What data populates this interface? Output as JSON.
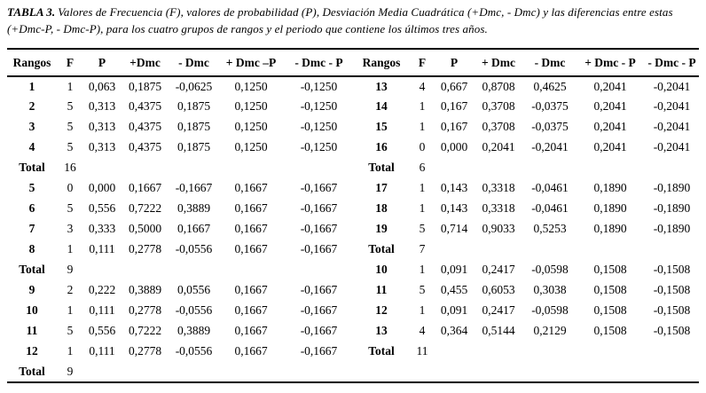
{
  "colors": {
    "background": "#ffffff",
    "text": "#000000",
    "rule": "#000000"
  },
  "caption": {
    "label": "TABLA 3.",
    "text": "Valores de Frecuencia (F), valores de probabilidad (P), Desviación Media Cuadrática (+Dmc, - Dmc) y las diferencias entre estas (+Dmc-P, - Dmc-P), para los cuatro grupos de rangos y el periodo que contiene los últimos tres años."
  },
  "table": {
    "headers_left": [
      "Rangos",
      "F",
      "P",
      "+Dmc",
      "- Dmc",
      "+ Dmc –P",
      "- Dmc - P"
    ],
    "headers_right": [
      "Rangos",
      "F",
      "P",
      "+ Dmc",
      "- Dmc",
      "+ Dmc - P",
      "- Dmc - P"
    ],
    "rows": [
      {
        "left": [
          "1",
          "1",
          "0,063",
          "0,1875",
          "-0,0625",
          "0,1250",
          "-0,1250"
        ],
        "right": [
          "13",
          "4",
          "0,667",
          "0,8708",
          "0,4625",
          "0,2041",
          "-0,2041"
        ]
      },
      {
        "left": [
          "2",
          "5",
          "0,313",
          "0,4375",
          "0,1875",
          "0,1250",
          "-0,1250"
        ],
        "right": [
          "14",
          "1",
          "0,167",
          "0,3708",
          "-0,0375",
          "0,2041",
          "-0,2041"
        ]
      },
      {
        "left": [
          "3",
          "5",
          "0,313",
          "0,4375",
          "0,1875",
          "0,1250",
          "-0,1250"
        ],
        "right": [
          "15",
          "1",
          "0,167",
          "0,3708",
          "-0,0375",
          "0,2041",
          "-0,2041"
        ]
      },
      {
        "left": [
          "4",
          "5",
          "0,313",
          "0,4375",
          "0,1875",
          "0,1250",
          "-0,1250"
        ],
        "right": [
          "16",
          "0",
          "0,000",
          "0,2041",
          "-0,2041",
          "0,2041",
          "-0,2041"
        ]
      },
      {
        "left": [
          "Total",
          "16",
          "",
          "",
          "",
          "",
          ""
        ],
        "right": [
          "Total",
          "6",
          "",
          "",
          "",
          "",
          ""
        ]
      },
      {
        "left": [
          "5",
          "0",
          "0,000",
          "0,1667",
          "-0,1667",
          "0,1667",
          "-0,1667"
        ],
        "right": [
          "17",
          "1",
          "0,143",
          "0,3318",
          "-0,0461",
          "0,1890",
          "-0,1890"
        ]
      },
      {
        "left": [
          "6",
          "5",
          "0,556",
          "0,7222",
          "0,3889",
          "0,1667",
          "-0,1667"
        ],
        "right": [
          "18",
          "1",
          "0,143",
          "0,3318",
          "-0,0461",
          "0,1890",
          "-0,1890"
        ]
      },
      {
        "left": [
          "7",
          "3",
          "0,333",
          "0,5000",
          "0,1667",
          "0,1667",
          "-0,1667"
        ],
        "right": [
          "19",
          "5",
          "0,714",
          "0,9033",
          "0,5253",
          "0,1890",
          "-0,1890"
        ]
      },
      {
        "left": [
          "8",
          "1",
          "0,111",
          "0,2778",
          "-0,0556",
          "0,1667",
          "-0,1667"
        ],
        "right": [
          "Total",
          "7",
          "",
          "",
          "",
          "",
          ""
        ]
      },
      {
        "left": [
          "Total",
          "9",
          "",
          "",
          "",
          "",
          ""
        ],
        "right": [
          "10",
          "1",
          "0,091",
          "0,2417",
          "-0,0598",
          "0,1508",
          "-0,1508"
        ]
      },
      {
        "left": [
          "9",
          "2",
          "0,222",
          "0,3889",
          "0,0556",
          "0,1667",
          "-0,1667"
        ],
        "right": [
          "11",
          "5",
          "0,455",
          "0,6053",
          "0,3038",
          "0,1508",
          "-0,1508"
        ]
      },
      {
        "left": [
          "10",
          "1",
          "0,111",
          "0,2778",
          "-0,0556",
          "0,1667",
          "-0,1667"
        ],
        "right": [
          "12",
          "1",
          "0,091",
          "0,2417",
          "-0,0598",
          "0,1508",
          "-0,1508"
        ]
      },
      {
        "left": [
          "11",
          "5",
          "0,556",
          "0,7222",
          "0,3889",
          "0,1667",
          "-0,1667"
        ],
        "right": [
          "13",
          "4",
          "0,364",
          "0,5144",
          "0,2129",
          "0,1508",
          "-0,1508"
        ]
      },
      {
        "left": [
          "12",
          "1",
          "0,111",
          "0,2778",
          "-0,0556",
          "0,1667",
          "-0,1667"
        ],
        "right": [
          "Total",
          "11",
          "",
          "",
          "",
          "",
          ""
        ]
      },
      {
        "left": [
          "Total",
          "9",
          "",
          "",
          "",
          "",
          ""
        ],
        "right": [
          "",
          "",
          "",
          "",
          "",
          "",
          ""
        ]
      }
    ]
  }
}
